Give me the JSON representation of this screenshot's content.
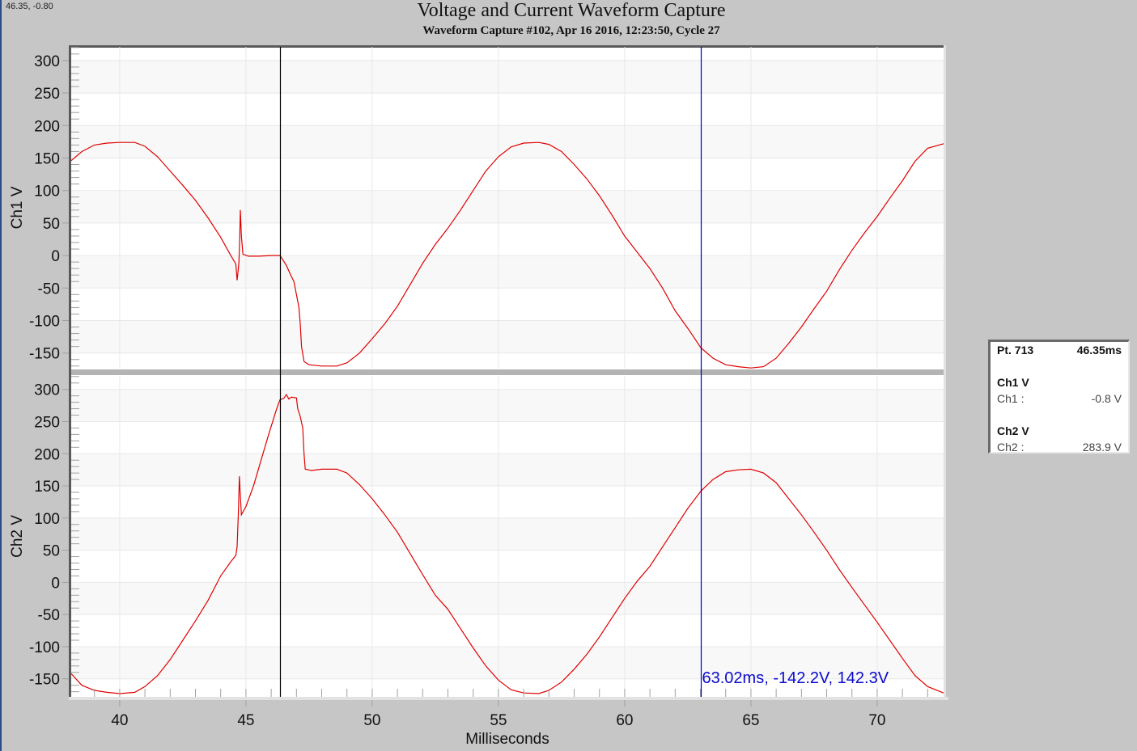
{
  "window": {
    "coordinate_readout": "46.35, -0.80"
  },
  "header": {
    "title": "Voltage and Current Waveform Capture",
    "subtitle": "Waveform Capture #102, Apr 16 2016, 12:23:50,  Cycle 27"
  },
  "cursor_info": {
    "point_label": "Pt. 713",
    "time_label": "46.35ms",
    "channels": [
      {
        "heading": "Ch1 V",
        "name": "Ch1 :",
        "value": "-0.8 V"
      },
      {
        "heading": "Ch2 V",
        "name": "Ch2 :",
        "value": "283.9 V"
      }
    ]
  },
  "cursor_readout": "63.02ms, -142.2V, 142.3V",
  "colors": {
    "trace": "#e00000",
    "cursor1": "#000000",
    "cursor2": "#0000cc",
    "band_alt": "#f8f8f8",
    "plot_bg": "#ffffff",
    "separator": "#b4b4b4"
  },
  "chart_data": {
    "type": "line",
    "title": "Voltage and Current Waveform Capture",
    "subtitle": "Waveform Capture #102, Apr 16 2016, 12:23:50,  Cycle 27",
    "xlabel": "Milliseconds",
    "xlim": [
      38.08,
      72.63
    ],
    "xticks": [
      40,
      45,
      50,
      55,
      60,
      65,
      70
    ],
    "grid": true,
    "cursors": [
      {
        "x": 46.35,
        "color": "#000000"
      },
      {
        "x": 63.02,
        "color": "#0000cc",
        "readout": "63.02ms, -142.2V, 142.3V"
      }
    ],
    "panels": [
      {
        "ylabel": "Ch1 V",
        "ylim": [
          -174,
          321
        ],
        "yticks": [
          300,
          250,
          200,
          150,
          100,
          50,
          0,
          -50,
          -100,
          -150
        ],
        "series": {
          "name": "Ch1",
          "points": [
            [
              38.08,
              146
            ],
            [
              38.5,
              160
            ],
            [
              39.0,
              170
            ],
            [
              39.5,
              173
            ],
            [
              40.0,
              174
            ],
            [
              40.6,
              174
            ],
            [
              41.0,
              168
            ],
            [
              41.5,
              152
            ],
            [
              42.0,
              130
            ],
            [
              42.5,
              108
            ],
            [
              43.0,
              85
            ],
            [
              43.5,
              58
            ],
            [
              44.0,
              28
            ],
            [
              44.4,
              0
            ],
            [
              44.6,
              -13
            ],
            [
              44.65,
              -38
            ],
            [
              44.72,
              -12
            ],
            [
              44.75,
              20
            ],
            [
              44.78,
              70
            ],
            [
              44.82,
              30
            ],
            [
              44.88,
              2
            ],
            [
              45.1,
              -1
            ],
            [
              45.5,
              -1
            ],
            [
              46.0,
              0
            ],
            [
              46.35,
              0
            ],
            [
              46.45,
              -6
            ],
            [
              46.6,
              -15
            ],
            [
              46.75,
              -28
            ],
            [
              46.9,
              -40
            ],
            [
              47.0,
              -60
            ],
            [
              47.1,
              -80
            ],
            [
              47.15,
              -105
            ],
            [
              47.2,
              -140
            ],
            [
              47.3,
              -163
            ],
            [
              47.5,
              -168
            ],
            [
              48.0,
              -170
            ],
            [
              48.6,
              -170
            ],
            [
              49.0,
              -165
            ],
            [
              49.5,
              -150
            ],
            [
              50.0,
              -128
            ],
            [
              50.5,
              -105
            ],
            [
              51.0,
              -78
            ],
            [
              51.5,
              -45
            ],
            [
              52.0,
              -12
            ],
            [
              52.5,
              17
            ],
            [
              53.0,
              42
            ],
            [
              53.5,
              70
            ],
            [
              54.0,
              100
            ],
            [
              54.5,
              130
            ],
            [
              55.0,
              152
            ],
            [
              55.5,
              167
            ],
            [
              56.0,
              173
            ],
            [
              56.6,
              174
            ],
            [
              57.0,
              171
            ],
            [
              57.5,
              160
            ],
            [
              58.0,
              140
            ],
            [
              58.5,
              118
            ],
            [
              59.0,
              92
            ],
            [
              59.5,
              62
            ],
            [
              60.0,
              30
            ],
            [
              60.5,
              5
            ],
            [
              61.0,
              -20
            ],
            [
              61.5,
              -50
            ],
            [
              62.0,
              -85
            ],
            [
              62.5,
              -112
            ],
            [
              63.02,
              -142
            ],
            [
              63.5,
              -158
            ],
            [
              64.0,
              -168
            ],
            [
              64.5,
              -171
            ],
            [
              65.0,
              -173
            ],
            [
              65.5,
              -171
            ],
            [
              66.0,
              -158
            ],
            [
              66.5,
              -135
            ],
            [
              67.0,
              -110
            ],
            [
              67.5,
              -82
            ],
            [
              68.0,
              -55
            ],
            [
              68.5,
              -22
            ],
            [
              69.0,
              8
            ],
            [
              69.5,
              35
            ],
            [
              70.0,
              60
            ],
            [
              70.5,
              88
            ],
            [
              71.0,
              115
            ],
            [
              71.5,
              145
            ],
            [
              72.0,
              165
            ],
            [
              72.63,
              172
            ]
          ]
        }
      },
      {
        "ylabel": "Ch2 V",
        "ylim": [
          -178,
          321
        ],
        "yticks": [
          300,
          250,
          200,
          150,
          100,
          50,
          0,
          -50,
          -100,
          -150
        ],
        "series": {
          "name": "Ch2",
          "points": [
            [
              38.08,
              -142
            ],
            [
              38.5,
              -160
            ],
            [
              39.0,
              -168
            ],
            [
              39.5,
              -171
            ],
            [
              40.0,
              -173
            ],
            [
              40.6,
              -171
            ],
            [
              41.0,
              -162
            ],
            [
              41.5,
              -145
            ],
            [
              42.0,
              -120
            ],
            [
              42.5,
              -90
            ],
            [
              43.0,
              -60
            ],
            [
              43.5,
              -28
            ],
            [
              44.0,
              10
            ],
            [
              44.4,
              32
            ],
            [
              44.6,
              42
            ],
            [
              44.65,
              55
            ],
            [
              44.7,
              110
            ],
            [
              44.74,
              165
            ],
            [
              44.78,
              135
            ],
            [
              44.82,
              105
            ],
            [
              45.0,
              118
            ],
            [
              45.3,
              150
            ],
            [
              45.6,
              190
            ],
            [
              45.9,
              230
            ],
            [
              46.2,
              268
            ],
            [
              46.35,
              284
            ],
            [
              46.5,
              286
            ],
            [
              46.6,
              292
            ],
            [
              46.7,
              285
            ],
            [
              46.8,
              288
            ],
            [
              47.0,
              287
            ],
            [
              47.05,
              270
            ],
            [
              47.15,
              258
            ],
            [
              47.25,
              240
            ],
            [
              47.3,
              200
            ],
            [
              47.35,
              176
            ],
            [
              47.6,
              174
            ],
            [
              48.0,
              176
            ],
            [
              48.6,
              176
            ],
            [
              49.0,
              170
            ],
            [
              49.5,
              152
            ],
            [
              50.0,
              130
            ],
            [
              50.5,
              105
            ],
            [
              51.0,
              78
            ],
            [
              51.5,
              45
            ],
            [
              52.0,
              12
            ],
            [
              52.5,
              -20
            ],
            [
              53.0,
              -42
            ],
            [
              53.5,
              -72
            ],
            [
              54.0,
              -102
            ],
            [
              54.5,
              -130
            ],
            [
              55.0,
              -152
            ],
            [
              55.5,
              -167
            ],
            [
              56.0,
              -172
            ],
            [
              56.6,
              -173
            ],
            [
              57.0,
              -168
            ],
            [
              57.5,
              -155
            ],
            [
              58.0,
              -135
            ],
            [
              58.5,
              -112
            ],
            [
              59.0,
              -85
            ],
            [
              59.5,
              -55
            ],
            [
              60.0,
              -25
            ],
            [
              60.5,
              2
            ],
            [
              61.0,
              25
            ],
            [
              61.5,
              55
            ],
            [
              62.0,
              85
            ],
            [
              62.5,
              115
            ],
            [
              63.02,
              142
            ],
            [
              63.5,
              160
            ],
            [
              64.0,
              172
            ],
            [
              64.5,
              175
            ],
            [
              65.0,
              176
            ],
            [
              65.5,
              170
            ],
            [
              66.0,
              155
            ],
            [
              66.5,
              130
            ],
            [
              67.0,
              105
            ],
            [
              67.5,
              78
            ],
            [
              68.0,
              50
            ],
            [
              68.5,
              20
            ],
            [
              69.0,
              -8
            ],
            [
              69.5,
              -35
            ],
            [
              70.0,
              -62
            ],
            [
              70.5,
              -90
            ],
            [
              71.0,
              -118
            ],
            [
              71.5,
              -145
            ],
            [
              72.0,
              -162
            ],
            [
              72.63,
              -172
            ]
          ]
        }
      }
    ]
  }
}
